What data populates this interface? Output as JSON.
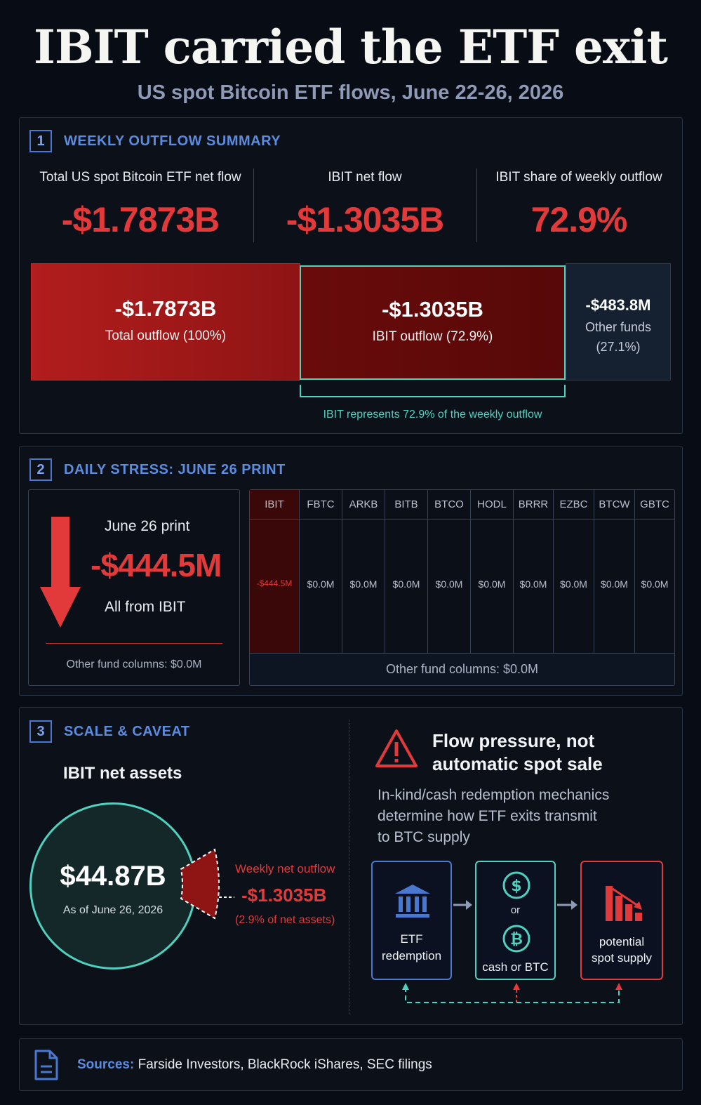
{
  "header": {
    "title": "IBIT carried the ETF exit",
    "subtitle": "US spot Bitcoin ETF flows, June 22-26, 2026"
  },
  "section1": {
    "number": "1",
    "title": "WEEKLY OUTFLOW SUMMARY",
    "kpis": [
      {
        "label": "Total US spot Bitcoin ETF net flow",
        "value": "-$1.7873B"
      },
      {
        "label": "IBIT net flow",
        "value": "-$1.3035B"
      },
      {
        "label": "IBIT share of weekly outflow",
        "value": "72.9%"
      }
    ],
    "bars": {
      "total": {
        "value": "-$1.7873B",
        "label": "Total outflow (100%)"
      },
      "ibit": {
        "value": "-$1.3035B",
        "label": "IBIT outflow (72.9%)"
      },
      "other": {
        "value": "-$483.8M",
        "label1": "Other funds",
        "label2": "(27.1%)"
      }
    },
    "bracket_text": "IBIT represents 72.9% of the weekly outflow"
  },
  "section2": {
    "number": "2",
    "title": "DAILY STRESS: JUNE 26 PRINT",
    "card": {
      "date_label": "June 26 print",
      "value": "-$444.5M",
      "note": "All from IBIT",
      "footer": "Other fund columns: $0.0M"
    },
    "funds": [
      {
        "name": "IBIT",
        "value": "-$444.5M"
      },
      {
        "name": "FBTC",
        "value": "$0.0M"
      },
      {
        "name": "ARKB",
        "value": "$0.0M"
      },
      {
        "name": "BITB",
        "value": "$0.0M"
      },
      {
        "name": "BTCO",
        "value": "$0.0M"
      },
      {
        "name": "HODL",
        "value": "$0.0M"
      },
      {
        "name": "BRRR",
        "value": "$0.0M"
      },
      {
        "name": "EZBC",
        "value": "$0.0M"
      },
      {
        "name": "BTCW",
        "value": "$0.0M"
      },
      {
        "name": "GBTC",
        "value": "$0.0M"
      }
    ],
    "table_footer": "Other fund columns: $0.0M"
  },
  "section3": {
    "number": "3",
    "title": "SCALE & CAVEAT",
    "assets_label": "IBIT net assets",
    "assets_value": "$44.87B",
    "assets_date": "As of June 26, 2026",
    "outflow_label": "Weekly net outflow",
    "outflow_value": "-$1.3035B",
    "outflow_pct": "(2.9% of net assets)",
    "caveat_title_line1": "Flow pressure, not",
    "caveat_title_line2": "automatic spot sale",
    "caveat_body_line1": "In-kind/cash redemption mechanics",
    "caveat_body_line2": "determine how ETF exits transmit",
    "caveat_body_line3": "to BTC supply",
    "flow": {
      "step1_line1": "ETF",
      "step1_line2": "redemption",
      "step2_or": "or",
      "step2_label": "cash or BTC",
      "step3_line1": "potential",
      "step3_line2": "spot supply"
    }
  },
  "footer": {
    "sources_label": "Sources:",
    "sources_text": "Farside Investors, BlackRock iShares, SEC filings"
  },
  "colors": {
    "accent_red": "#e23a3a",
    "accent_teal": "#4fd1c0",
    "accent_blue": "#5b8cdf",
    "background": "#080c14"
  }
}
